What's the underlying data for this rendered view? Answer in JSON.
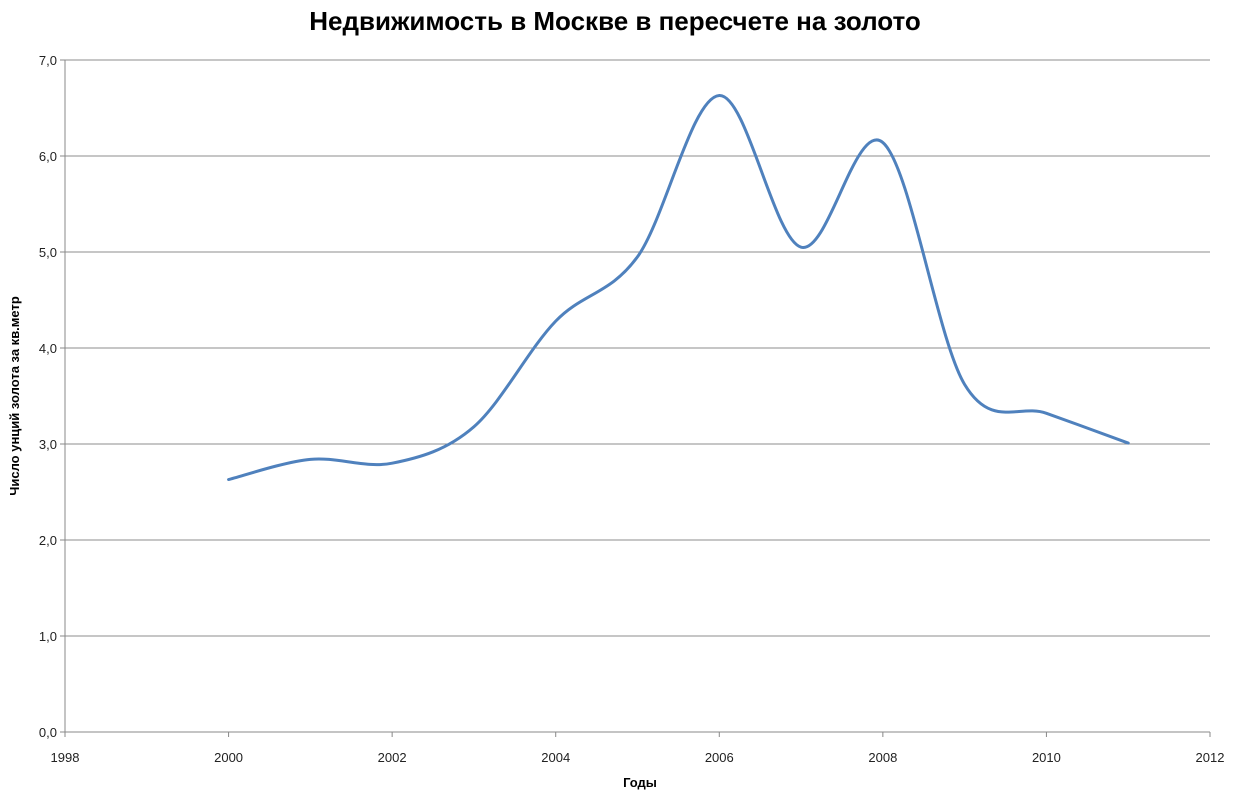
{
  "chart_data": {
    "type": "line",
    "title": "Недвижимость в Москве в пересчете на золото",
    "xlabel": "Годы",
    "ylabel": "Число унций золота за кв.метр",
    "xlim": [
      1998,
      2012
    ],
    "ylim": [
      0,
      7
    ],
    "x_ticks": [
      1998,
      2000,
      2002,
      2004,
      2006,
      2008,
      2010,
      2012
    ],
    "y_ticks": [
      "0,0",
      "1,0",
      "2,0",
      "3,0",
      "4,0",
      "5,0",
      "6,0",
      "7,0"
    ],
    "grid": true,
    "legend": "none",
    "smooth": true,
    "series": [
      {
        "color": "#4F81BD",
        "x": [
          2000,
          2001,
          2002,
          2003,
          2004,
          2005,
          2006,
          2007,
          2008,
          2009,
          2010,
          2011
        ],
        "y": [
          2.63,
          2.84,
          2.8,
          3.18,
          4.28,
          4.95,
          6.63,
          5.05,
          6.14,
          3.62,
          3.32,
          3.01
        ]
      }
    ]
  }
}
